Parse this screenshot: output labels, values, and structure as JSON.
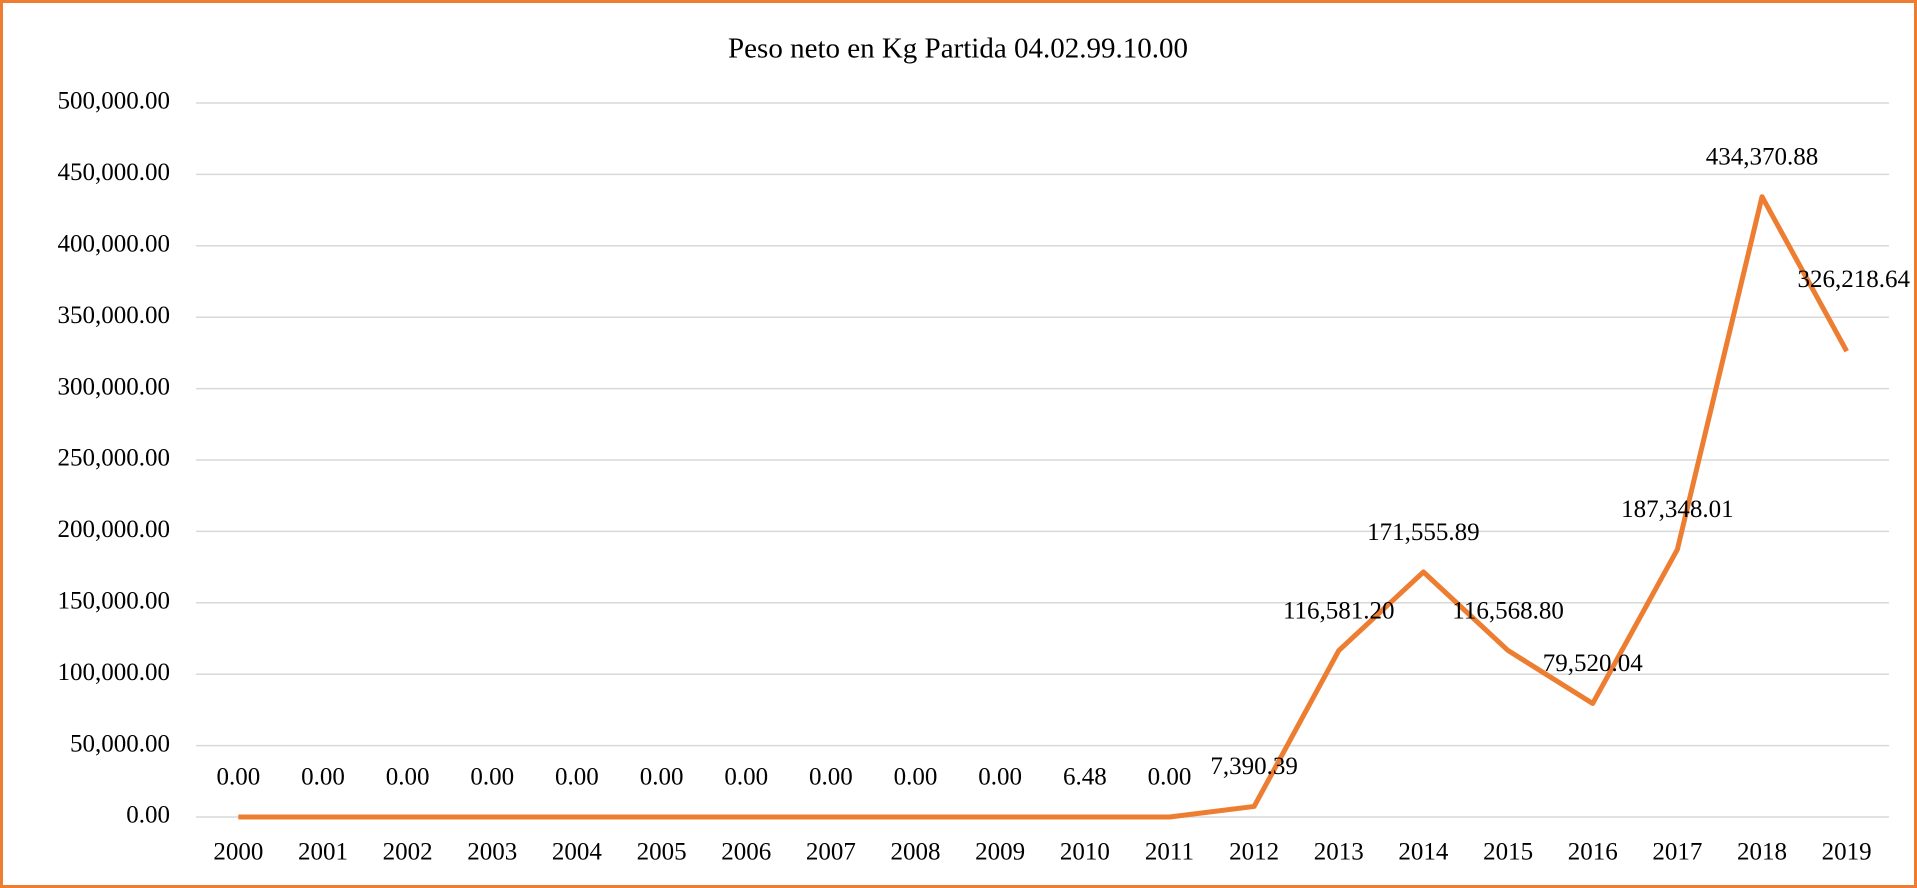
{
  "chart_data": {
    "type": "line",
    "title": "Peso neto en Kg Partida 04.02.99.10.00",
    "categories": [
      "2000",
      "2001",
      "2002",
      "2003",
      "2004",
      "2005",
      "2006",
      "2007",
      "2008",
      "2009",
      "2010",
      "2011",
      "2012",
      "2013",
      "2014",
      "2015",
      "2016",
      "2017",
      "2018",
      "2019"
    ],
    "series": [
      {
        "name": "Peso neto en Kg",
        "color": "#ed7d31",
        "values": [
          0,
          0,
          0,
          0,
          0,
          0,
          0,
          0,
          0,
          0,
          6.48,
          0,
          7390.39,
          116581.2,
          171555.89,
          116568.8,
          79520.04,
          187348.01,
          434370.88,
          326218.64
        ],
        "value_labels": [
          "0.00",
          "0.00",
          "0.00",
          "0.00",
          "0.00",
          "0.00",
          "0.00",
          "0.00",
          "0.00",
          "0.00",
          "6.48",
          "0.00",
          "7,390.39",
          "116,581.20",
          "171,555.89",
          "116,568.80",
          "79,520.04",
          "187,348.01",
          "434,370.88",
          "326,218.64"
        ]
      }
    ],
    "ylim": [
      0,
      500000
    ],
    "yticks": [
      {
        "value": 0,
        "label": "0.00"
      },
      {
        "value": 50000,
        "label": "50,000.00"
      },
      {
        "value": 100000,
        "label": "100,000.00"
      },
      {
        "value": 150000,
        "label": "150,000.00"
      },
      {
        "value": 200000,
        "label": "200,000.00"
      },
      {
        "value": 250000,
        "label": "250,000.00"
      },
      {
        "value": 300000,
        "label": "300,000.00"
      },
      {
        "value": 350000,
        "label": "350,000.00"
      },
      {
        "value": 400000,
        "label": "400,000.00"
      },
      {
        "value": 450000,
        "label": "450,000.00"
      },
      {
        "value": 500000,
        "label": "500,000.00"
      }
    ],
    "grid": true
  }
}
